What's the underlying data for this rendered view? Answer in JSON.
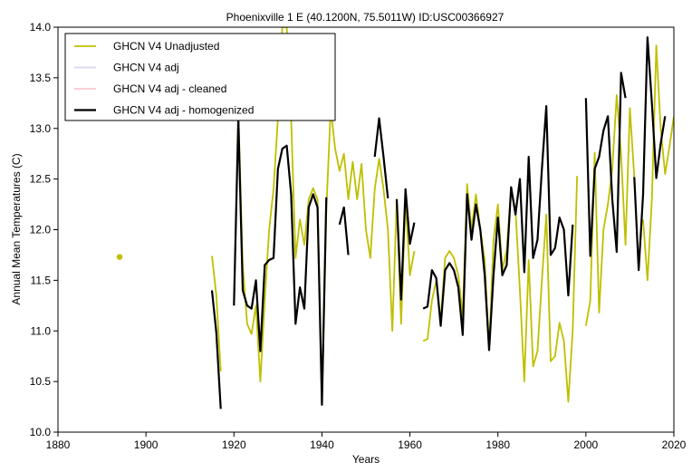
{
  "chart_data": {
    "type": "line",
    "title": "Phoenixville 1 E (40.1200N, 75.5011W) ID:USC00366927",
    "xlabel": "Years",
    "ylabel": "Annual Mean Temperatures (C)",
    "xlim": [
      1880,
      2020
    ],
    "ylim": [
      10.0,
      14.0
    ],
    "x_ticks": [
      "1880",
      "1900",
      "1920",
      "1940",
      "1960",
      "1980",
      "2000",
      "2020"
    ],
    "y_ticks": [
      "10.0",
      "10.5",
      "11.0",
      "11.5",
      "12.0",
      "12.5",
      "13.0",
      "13.5",
      "14.0"
    ],
    "grid": false,
    "legend_position": "top-left",
    "series": [
      {
        "name": "GHCN V4 Unadjusted",
        "color": "#bfbf00",
        "values": [
          [
            1894,
            11.73
          ],
          [
            1895,
            null
          ],
          [
            1915,
            11.74
          ],
          [
            1916,
            11.35
          ],
          [
            1917,
            10.6
          ],
          [
            1918,
            null
          ],
          [
            1921,
            13.15
          ],
          [
            1922,
            11.65
          ],
          [
            1923,
            11.07
          ],
          [
            1924,
            10.97
          ],
          [
            1925,
            11.25
          ],
          [
            1926,
            10.5
          ],
          [
            1927,
            11.3
          ],
          [
            1928,
            12.0
          ],
          [
            1929,
            12.4
          ],
          [
            1930,
            13.1
          ],
          [
            1931,
            14.0
          ],
          [
            1932,
            14.0
          ],
          [
            1933,
            13.1
          ],
          [
            1934,
            11.72
          ],
          [
            1935,
            12.1
          ],
          [
            1936,
            11.85
          ],
          [
            1937,
            12.3
          ],
          [
            1938,
            12.41
          ],
          [
            1939,
            12.3
          ],
          [
            1940,
            10.28
          ],
          [
            1941,
            12.2
          ],
          [
            1942,
            13.2
          ],
          [
            1943,
            12.8
          ],
          [
            1944,
            12.58
          ],
          [
            1945,
            12.75
          ],
          [
            1946,
            12.3
          ],
          [
            1947,
            12.67
          ],
          [
            1948,
            12.3
          ],
          [
            1949,
            12.65
          ],
          [
            1950,
            12.0
          ],
          [
            1951,
            11.72
          ],
          [
            1952,
            12.4
          ],
          [
            1953,
            12.7
          ],
          [
            1954,
            12.4
          ],
          [
            1955,
            12.0
          ],
          [
            1956,
            11.0
          ],
          [
            1957,
            12.3
          ],
          [
            1958,
            11.07
          ],
          [
            1959,
            12.3
          ],
          [
            1960,
            11.55
          ],
          [
            1961,
            11.79
          ],
          [
            1962,
            null
          ],
          [
            1963,
            10.9
          ],
          [
            1964,
            10.92
          ],
          [
            1965,
            11.3
          ],
          [
            1966,
            11.5
          ],
          [
            1967,
            11.1
          ],
          [
            1968,
            11.72
          ],
          [
            1969,
            11.79
          ],
          [
            1970,
            11.72
          ],
          [
            1971,
            11.55
          ],
          [
            1972,
            11.15
          ],
          [
            1973,
            12.45
          ],
          [
            1974,
            12.0
          ],
          [
            1975,
            12.35
          ],
          [
            1976,
            12.0
          ],
          [
            1977,
            11.7
          ],
          [
            1978,
            10.82
          ],
          [
            1979,
            11.9
          ],
          [
            1980,
            12.25
          ],
          [
            1981,
            11.6
          ],
          [
            1982,
            11.8
          ],
          [
            1983,
            12.4
          ],
          [
            1984,
            12.2
          ],
          [
            1985,
            11.4
          ],
          [
            1986,
            10.5
          ],
          [
            1987,
            11.7
          ],
          [
            1988,
            10.65
          ],
          [
            1989,
            10.8
          ],
          [
            1990,
            11.5
          ],
          [
            1991,
            12.15
          ],
          [
            1992,
            10.7
          ],
          [
            1993,
            10.75
          ],
          [
            1994,
            11.08
          ],
          [
            1995,
            10.9
          ],
          [
            1996,
            10.3
          ],
          [
            1997,
            11.0
          ],
          [
            1998,
            12.53
          ],
          [
            1999,
            null
          ],
          [
            2000,
            11.05
          ],
          [
            2001,
            11.3
          ],
          [
            2002,
            12.76
          ],
          [
            2003,
            11.18
          ],
          [
            2004,
            12.0
          ],
          [
            2005,
            12.25
          ],
          [
            2006,
            12.6
          ],
          [
            2007,
            13.33
          ],
          [
            2008,
            12.75
          ],
          [
            2009,
            11.85
          ],
          [
            2010,
            13.2
          ],
          [
            2011,
            12.52
          ],
          [
            2012,
            null
          ],
          [
            2013,
            12.1
          ],
          [
            2014,
            11.5
          ],
          [
            2015,
            12.3
          ],
          [
            2016,
            13.82
          ],
          [
            2017,
            13.0
          ],
          [
            2018,
            12.55
          ],
          [
            2019,
            12.82
          ],
          [
            2020,
            13.12
          ]
        ]
      },
      {
        "name": "GHCN V4 adj",
        "color": "#d8d8f0",
        "values": []
      },
      {
        "name": "GHCN V4 adj - cleaned",
        "color": "#f8c8d0",
        "values": []
      },
      {
        "name": "GHCN V4 adj - homogenized",
        "color": "#000000",
        "values": [
          [
            1915,
            11.4
          ],
          [
            1916,
            10.98
          ],
          [
            1917,
            10.23
          ],
          [
            1918,
            null
          ],
          [
            1920,
            11.25
          ],
          [
            1921,
            13.1
          ],
          [
            1922,
            11.4
          ],
          [
            1923,
            11.25
          ],
          [
            1924,
            11.22
          ],
          [
            1925,
            11.5
          ],
          [
            1926,
            10.8
          ],
          [
            1927,
            11.65
          ],
          [
            1928,
            11.7
          ],
          [
            1929,
            11.72
          ],
          [
            1930,
            12.6
          ],
          [
            1931,
            12.8
          ],
          [
            1932,
            12.83
          ],
          [
            1933,
            12.35
          ],
          [
            1934,
            11.07
          ],
          [
            1935,
            11.43
          ],
          [
            1936,
            11.22
          ],
          [
            1937,
            12.22
          ],
          [
            1938,
            12.35
          ],
          [
            1939,
            12.22
          ],
          [
            1940,
            10.27
          ],
          [
            1941,
            12.32
          ],
          [
            1942,
            null
          ],
          [
            1944,
            12.05
          ],
          [
            1945,
            12.22
          ],
          [
            1946,
            11.75
          ],
          [
            1947,
            null
          ],
          [
            1952,
            12.72
          ],
          [
            1953,
            13.1
          ],
          [
            1954,
            12.72
          ],
          [
            1955,
            12.31
          ],
          [
            1956,
            null
          ],
          [
            1957,
            12.3
          ],
          [
            1958,
            11.31
          ],
          [
            1959,
            12.4
          ],
          [
            1960,
            11.86
          ],
          [
            1961,
            12.07
          ],
          [
            1962,
            null
          ],
          [
            1963,
            11.22
          ],
          [
            1964,
            11.24
          ],
          [
            1965,
            11.6
          ],
          [
            1966,
            11.52
          ],
          [
            1967,
            11.05
          ],
          [
            1968,
            11.6
          ],
          [
            1969,
            11.67
          ],
          [
            1970,
            11.6
          ],
          [
            1971,
            11.43
          ],
          [
            1972,
            10.96
          ],
          [
            1973,
            12.35
          ],
          [
            1974,
            11.9
          ],
          [
            1975,
            12.25
          ],
          [
            1976,
            12.0
          ],
          [
            1977,
            11.55
          ],
          [
            1978,
            10.81
          ],
          [
            1979,
            11.55
          ],
          [
            1980,
            12.12
          ],
          [
            1981,
            11.55
          ],
          [
            1982,
            11.65
          ],
          [
            1983,
            12.42
          ],
          [
            1984,
            12.15
          ],
          [
            1985,
            12.5
          ],
          [
            1986,
            11.58
          ],
          [
            1987,
            12.72
          ],
          [
            1988,
            11.72
          ],
          [
            1989,
            11.9
          ],
          [
            1990,
            12.6
          ],
          [
            1991,
            13.22
          ],
          [
            1992,
            11.75
          ],
          [
            1993,
            11.82
          ],
          [
            1994,
            12.12
          ],
          [
            1995,
            12.0
          ],
          [
            1996,
            11.35
          ],
          [
            1997,
            12.05
          ],
          [
            1998,
            null
          ],
          [
            2000,
            13.3
          ],
          [
            2001,
            11.74
          ],
          [
            2002,
            12.6
          ],
          [
            2003,
            12.72
          ],
          [
            2004,
            12.98
          ],
          [
            2005,
            13.12
          ],
          [
            2006,
            12.3
          ],
          [
            2007,
            11.78
          ],
          [
            2008,
            13.55
          ],
          [
            2009,
            13.3
          ],
          [
            2010,
            null
          ],
          [
            2011,
            12.52
          ],
          [
            2012,
            11.6
          ],
          [
            2013,
            12.35
          ],
          [
            2014,
            13.9
          ],
          [
            2015,
            13.25
          ],
          [
            2016,
            12.51
          ],
          [
            2017,
            12.85
          ],
          [
            2018,
            13.12
          ]
        ]
      }
    ]
  }
}
